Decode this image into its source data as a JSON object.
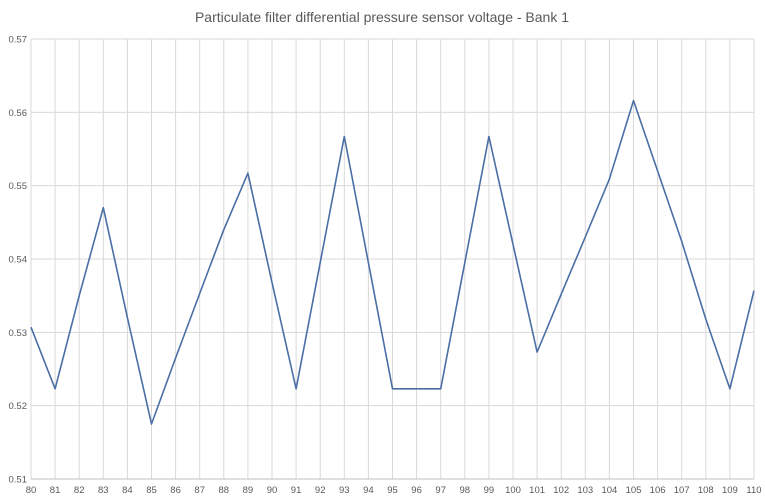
{
  "chart_data": {
    "type": "line",
    "title": "Particulate filter differential pressure sensor voltage  -  Bank 1",
    "xlabel": "",
    "ylabel": "",
    "x": [
      80,
      81,
      82,
      83,
      84,
      85,
      86,
      87,
      88,
      89,
      90,
      91,
      92,
      93,
      94,
      95,
      96,
      97,
      98,
      99,
      100,
      101,
      102,
      103,
      104,
      105,
      106,
      107,
      108,
      109,
      110
    ],
    "series": [
      {
        "name": "",
        "color": "#4a6fa5",
        "values": [
          0.5307,
          0.5223,
          0.535,
          0.547,
          0.532,
          0.5175,
          0.5265,
          0.5353,
          0.544,
          0.5517,
          0.5368,
          0.5223,
          0.5395,
          0.5567,
          0.5395,
          0.5223,
          0.5223,
          0.5223,
          0.5395,
          0.5567,
          0.542,
          0.5273,
          0.5352,
          0.543,
          0.5509,
          0.5616,
          0.552,
          0.5424,
          0.5318,
          0.5223,
          0.5357
        ]
      }
    ],
    "xlim": [
      80,
      110
    ],
    "ylim": [
      0.51,
      0.57
    ],
    "yticks": [
      "0.51",
      "0.52",
      "0.53",
      "0.54",
      "0.55",
      "0.56",
      "0.57"
    ],
    "xticks": [
      "80",
      "81",
      "82",
      "83",
      "84",
      "85",
      "86",
      "87",
      "88",
      "89",
      "90",
      "91",
      "92",
      "93",
      "94",
      "95",
      "96",
      "97",
      "98",
      "99",
      "100",
      "101",
      "102",
      "103",
      "104",
      "105",
      "106",
      "107",
      "108",
      "109",
      "110"
    ],
    "grid": "vertical-and-horizontal",
    "legend": "none"
  }
}
